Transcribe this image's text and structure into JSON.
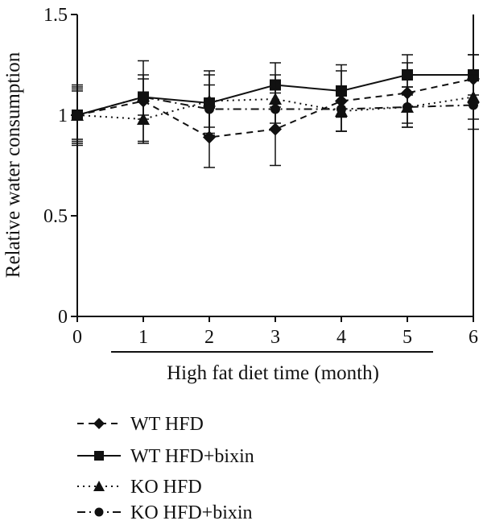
{
  "chart_data": {
    "type": "line",
    "title": "",
    "xlabel": "High fat diet time (month)",
    "ylabel": "Relative water consumption",
    "xlim": [
      0,
      6
    ],
    "ylim": [
      0,
      1.5
    ],
    "x_ticks": [
      "0",
      "1",
      "2",
      "3",
      "4",
      "5",
      "6"
    ],
    "y_ticks": [
      "0",
      "0.5",
      "1",
      "1.5"
    ],
    "grid": false,
    "legend_position": "bottom-left",
    "x": [
      0,
      1,
      2,
      3,
      4,
      5,
      6
    ],
    "series": [
      {
        "name": "WT HFD",
        "marker": "diamond",
        "dash": "dashed",
        "values": [
          1.0,
          1.07,
          0.89,
          0.93,
          1.07,
          1.11,
          1.18
        ],
        "errors": [
          0.15,
          0.2,
          0.15,
          0.18,
          0.15,
          0.15,
          0.12
        ]
      },
      {
        "name": "WT HFD+bixin",
        "marker": "square",
        "dash": "solid",
        "values": [
          1.0,
          1.09,
          1.06,
          1.15,
          1.12,
          1.2,
          1.2
        ],
        "errors": [
          0.12,
          0.11,
          0.16,
          0.11,
          0.13,
          0.1,
          0.1
        ]
      },
      {
        "name": "KO HFD",
        "marker": "triangle",
        "dash": "dotted",
        "values": [
          1.0,
          0.98,
          1.07,
          1.08,
          1.02,
          1.04,
          1.09
        ],
        "errors": [
          0.14,
          0.12,
          0.13,
          0.12,
          0.1,
          0.1,
          0.11
        ]
      },
      {
        "name": "KO HFD+bixin",
        "marker": "circle",
        "dash": "dashdot",
        "values": [
          1.0,
          1.09,
          1.03,
          1.03,
          1.03,
          1.04,
          1.05
        ],
        "errors": [
          0.13,
          0.09,
          0.12,
          0.1,
          0.11,
          0.1,
          0.12
        ]
      }
    ]
  }
}
